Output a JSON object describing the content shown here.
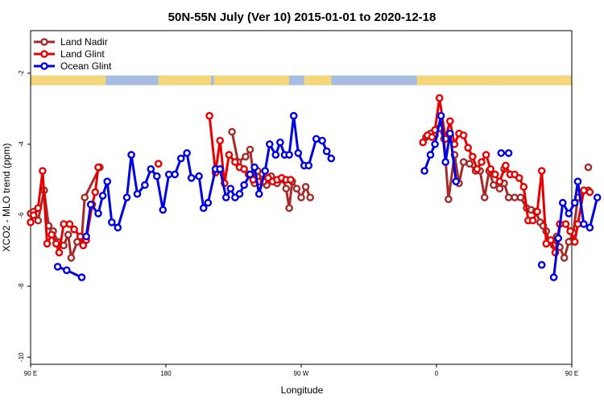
{
  "chart_data": {
    "type": "line",
    "title": "50N-55N July (Ver 10)   2015-01-01 to 2020-12-18",
    "xlabel": "Longitude",
    "ylabel": "XCO2 - MLO trend (ppm)",
    "xlim": [
      90,
      450
    ],
    "ylim": [
      -10.2,
      -0.8
    ],
    "xticks": [
      {
        "value": 90,
        "label": "90 E"
      },
      {
        "value": 180,
        "label": "180"
      },
      {
        "value": 270,
        "label": "90 W"
      },
      {
        "value": 360,
        "label": "0"
      },
      {
        "value": 450,
        "label": "90 E"
      },
      {
        "value": 540,
        "label": "180"
      }
    ],
    "yticks": [
      {
        "value": -2,
        "label": "-2"
      },
      {
        "value": -4,
        "label": "-4"
      },
      {
        "value": -6,
        "label": "-6"
      },
      {
        "value": -8,
        "label": "-8"
      },
      {
        "value": -10,
        "label": "-10"
      }
    ],
    "grid": false,
    "legend_position": "top-left",
    "land_mask": {
      "y": -2.2,
      "land_color": "#f5d67a",
      "ocean_color": "#a7bde0"
    },
    "series": [
      {
        "name": "Land Nadir",
        "color": "#a52a2a",
        "segments": [
          [
            [
              90,
              -5.95
            ],
            [
              92,
              -5.9
            ],
            [
              95,
              -6.15
            ],
            [
              99,
              -5.3
            ],
            [
              102,
              -6.3
            ],
            [
              105,
              -6.45
            ],
            [
              108,
              -6.75
            ],
            [
              112,
              -6.85
            ],
            [
              115,
              -6.55
            ],
            [
              117,
              -7.2
            ],
            [
              121,
              -6.75
            ],
            [
              124,
              -6.65
            ],
            [
              126,
              -5.5
            ],
            [
              136,
              -4.65
            ]
          ],
          [
            [
              224,
              -3.65
            ],
            [
              228,
              -4.5
            ],
            [
              233,
              -4.35
            ],
            [
              236,
              -4.15
            ],
            [
              239,
              -5.1
            ],
            [
              241,
              -4.75
            ],
            [
              244,
              -5.0
            ],
            [
              247,
              -5.15
            ],
            [
              250,
              -4.9
            ],
            [
              254,
              -5.1
            ],
            [
              258,
              -5.0
            ],
            [
              260,
              -5.25
            ],
            [
              262,
              -5.8
            ],
            [
              264,
              -5.05
            ],
            [
              267,
              -5.25
            ],
            [
              270,
              -5.5
            ],
            [
              273,
              -5.2
            ],
            [
              276,
              -5.5
            ]
          ],
          [
            [
              353,
              -3.8
            ],
            [
              356,
              -3.7
            ],
            [
              359,
              -3.75
            ],
            [
              362,
              -3.55
            ],
            [
              365,
              -3.85
            ],
            [
              368,
              -5.55
            ],
            [
              372,
              -4.3
            ],
            [
              375,
              -5.1
            ],
            [
              378,
              -4.5
            ],
            [
              382,
              -4.55
            ],
            [
              386,
              -4.75
            ],
            [
              389,
              -4.75
            ],
            [
              392,
              -5.5
            ],
            [
              395,
              -4.75
            ],
            [
              398,
              -5.15
            ],
            [
              402,
              -5.25
            ],
            [
              405,
              -5.1
            ],
            [
              408,
              -5.5
            ],
            [
              412,
              -5.5
            ],
            [
              416,
              -5.5
            ],
            [
              420,
              -5.8
            ],
            [
              423,
              -5.85
            ],
            [
              426,
              -5.9
            ],
            [
              429,
              -6.2
            ],
            [
              431,
              -6.3
            ],
            [
              433,
              -6.45
            ],
            [
              435,
              -6.75
            ],
            [
              438,
              -6.85
            ],
            [
              440,
              -6.6
            ],
            [
              442,
              -6.9
            ],
            [
              445,
              -7.2
            ],
            [
              448,
              -6.75
            ],
            [
              451,
              -6.5
            ],
            [
              454,
              -5.5
            ],
            [
              461,
              -5.3
            ]
          ],
          [
            [
              461,
              -4.65
            ]
          ],
          [
            [
              405,
              -4.7
            ]
          ]
        ]
      },
      {
        "name": "Land Glint",
        "color": "#e60000",
        "segments": [
          [
            [
              90,
              -6.2
            ],
            [
              92,
              -6.0
            ],
            [
              95,
              -5.8
            ],
            [
              98,
              -4.75
            ],
            [
              101,
              -6.8
            ],
            [
              104,
              -6.55
            ],
            [
              107,
              -6.8
            ],
            [
              109,
              -7.05
            ],
            [
              112,
              -6.25
            ],
            [
              116,
              -6.25
            ],
            [
              119,
              -6.4
            ],
            [
              123,
              -6.6
            ],
            [
              125,
              -6.85
            ],
            [
              127,
              -6.7
            ],
            [
              131,
              -5.7
            ],
            [
              133,
              -5.35
            ],
            [
              135,
              -4.65
            ]
          ],
          [
            [
              175,
              -4.55
            ]
          ],
          [
            [
              209,
              -3.2
            ],
            [
              213,
              -4.8
            ],
            [
              216,
              -3.9
            ],
            [
              219,
              -5.1
            ],
            [
              222,
              -4.3
            ],
            [
              226,
              -4.5
            ],
            [
              229,
              -4.65
            ],
            [
              232,
              -4.7
            ],
            [
              235,
              -4.85
            ],
            [
              238,
              -5.0
            ],
            [
              242,
              -5.05
            ],
            [
              245,
              -5.05
            ],
            [
              248,
              -4.95
            ],
            [
              251,
              -5.05
            ],
            [
              254,
              -5.0
            ],
            [
              257,
              -4.95
            ],
            [
              260,
              -5.0
            ],
            [
              263,
              -5.0
            ]
          ],
          [
            [
              351,
              -3.95
            ],
            [
              354,
              -3.75
            ],
            [
              357,
              -3.8
            ],
            [
              359,
              -3.6
            ],
            [
              362,
              -2.7
            ],
            [
              366,
              -3.85
            ],
            [
              369,
              -3.35
            ],
            [
              372,
              -4.0
            ],
            [
              375,
              -3.7
            ],
            [
              378,
              -3.75
            ],
            [
              381,
              -4.1
            ],
            [
              384,
              -4.35
            ],
            [
              387,
              -4.7
            ],
            [
              390,
              -4.5
            ],
            [
              393,
              -4.3
            ],
            [
              396,
              -4.7
            ],
            [
              399,
              -4.85
            ],
            [
              402,
              -5.05
            ],
            [
              406,
              -4.6
            ],
            [
              409,
              -4.85
            ],
            [
              412,
              -4.85
            ],
            [
              415,
              -4.95
            ],
            [
              418,
              -5.2
            ],
            [
              421,
              -6.15
            ],
            [
              424,
              -6.15
            ],
            [
              427,
              -5.9
            ],
            [
              430,
              -4.75
            ],
            [
              433,
              -6.8
            ],
            [
              436,
              -6.7
            ],
            [
              439,
              -7.05
            ],
            [
              442,
              -6.25
            ],
            [
              446,
              -6.25
            ],
            [
              449,
              -6.45
            ],
            [
              452,
              -6.75
            ],
            [
              454,
              -6.25
            ],
            [
              458,
              -5.3
            ]
          ],
          [
            [
              462,
              -5.35
            ]
          ]
        ]
      },
      {
        "name": "Ocean Glint",
        "color": "#0000e0",
        "segments": [
          [
            [
              108,
              -7.45
            ],
            [
              114,
              -7.55
            ],
            [
              124,
              -7.75
            ]
          ],
          [
            [
              127,
              -6.6
            ],
            [
              130,
              -5.7
            ],
            [
              135,
              -5.95
            ],
            [
              138,
              -5.45
            ],
            [
              141,
              -5.05
            ],
            [
              144,
              -6.2
            ],
            [
              148,
              -6.35
            ],
            [
              154,
              -5.5
            ],
            [
              157,
              -4.3
            ],
            [
              161,
              -5.4
            ],
            [
              166,
              -5.15
            ],
            [
              170,
              -4.7
            ],
            [
              174,
              -4.9
            ],
            [
              178,
              -5.85
            ],
            [
              182,
              -4.85
            ],
            [
              186,
              -4.85
            ],
            [
              190,
              -4.4
            ],
            [
              194,
              -4.25
            ],
            [
              197,
              -4.95
            ],
            [
              202,
              -4.9
            ],
            [
              205,
              -5.8
            ],
            [
              208,
              -5.65
            ],
            [
              213,
              -4.7
            ],
            [
              216,
              -4.7
            ],
            [
              220,
              -5.5
            ],
            [
              223,
              -5.25
            ],
            [
              226,
              -5.5
            ],
            [
              229,
              -5.4
            ],
            [
              232,
              -5.15
            ],
            [
              236,
              -4.85
            ],
            [
              239,
              -4.65
            ],
            [
              242,
              -5.4
            ],
            [
              246,
              -4.75
            ],
            [
              249,
              -4.0
            ],
            [
              253,
              -4.3
            ],
            [
              256,
              -3.95
            ],
            [
              259,
              -4.3
            ],
            [
              262,
              -4.3
            ],
            [
              265,
              -3.2
            ],
            [
              268,
              -4.25
            ],
            [
              272,
              -4.6
            ],
            [
              275,
              -4.6
            ],
            [
              280,
              -3.85
            ],
            [
              284,
              -3.9
            ],
            [
              287,
              -4.2
            ],
            [
              290,
              -4.4
            ]
          ],
          [
            [
              403,
              -4.25
            ]
          ],
          [
            [
              352,
              -4.75
            ],
            [
              356,
              -4.3
            ],
            [
              359,
              -4.0
            ],
            [
              363,
              -3.2
            ],
            [
              366,
              -4.5
            ],
            [
              369,
              -3.7
            ],
            [
              373,
              -5.05
            ]
          ],
          [
            [
              408,
              -4.25
            ]
          ],
          [
            [
              430,
              -7.4
            ]
          ],
          [
            [
              438,
              -7.75
            ],
            [
              441,
              -6.65
            ],
            [
              444,
              -5.65
            ],
            [
              448,
              -5.95
            ],
            [
              452,
              -5.65
            ],
            [
              454,
              -5.05
            ],
            [
              458,
              -6.25
            ],
            [
              462,
              -6.35
            ],
            [
              467,
              -5.5
            ]
          ]
        ]
      }
    ]
  }
}
